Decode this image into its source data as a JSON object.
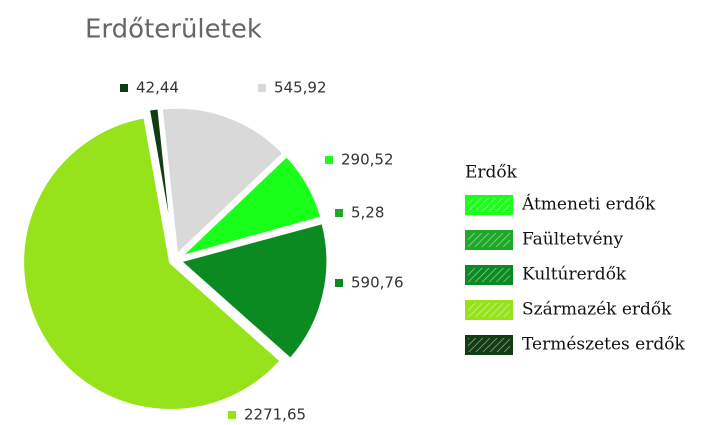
{
  "chart_data": {
    "type": "pie",
    "title": "Erdőterületek",
    "legend_title": "Erdők",
    "categories": [
      null,
      "Átmeneti erdők",
      "Faültetvény",
      "Kultúrerdők",
      "Származék erdők",
      "Természetes erdők"
    ],
    "values": [
      545.92,
      290.52,
      5.28,
      590.76,
      2271.65,
      42.44
    ],
    "value_labels": [
      "545,92",
      "290,52",
      "5,28",
      "590,76",
      "2271,65",
      "42,44"
    ],
    "colors": [
      "#d9d9d9",
      "#1aff1a",
      "#1fa82a",
      "#0b8a22",
      "#96e31b",
      "#123d12"
    ],
    "legend": "right"
  }
}
